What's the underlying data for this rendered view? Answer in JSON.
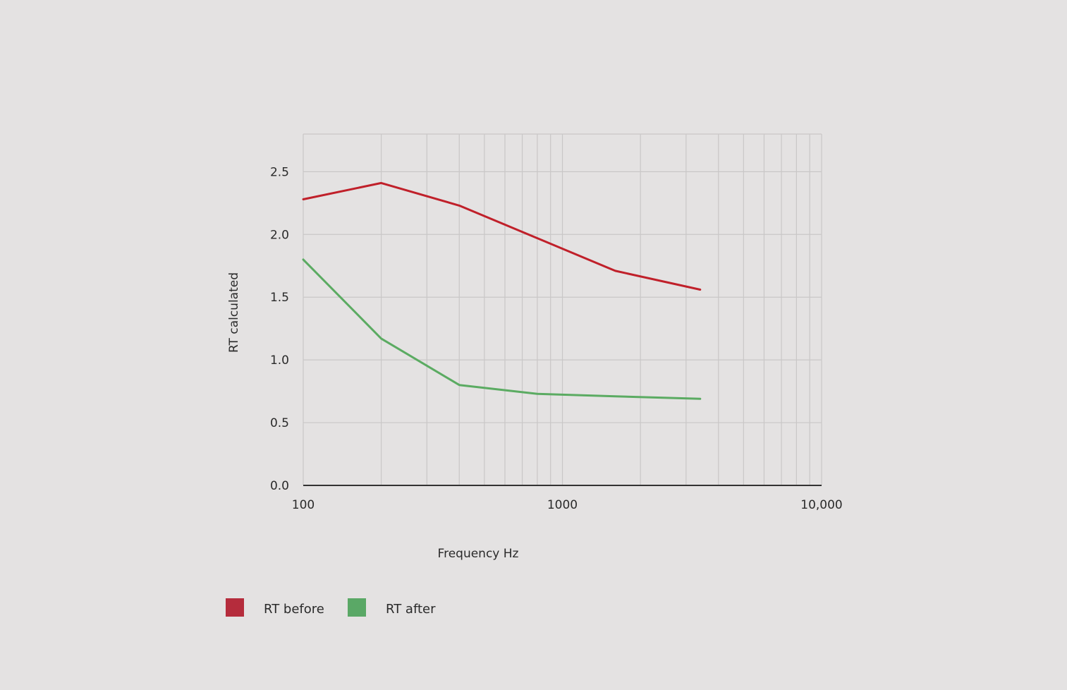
{
  "chart_data": {
    "type": "line",
    "title": "",
    "xlabel": "Frequency Hz",
    "ylabel": "RT calculated",
    "x_scale": "log",
    "xlim": [
      100,
      10000
    ],
    "ylim": [
      0,
      2.8
    ],
    "grid": true,
    "legend_position": "bottom-left",
    "x_tick_labels": [
      "100",
      "1000",
      "10,000"
    ],
    "x_tick_values": [
      100,
      1000,
      10000
    ],
    "y_tick_labels": [
      "0.0",
      "0.5",
      "1.0",
      "1.5",
      "2.0",
      "2.5"
    ],
    "y_tick_values": [
      0,
      0.5,
      1.0,
      1.5,
      2.0,
      2.5
    ],
    "x": [
      100,
      200,
      400,
      800,
      1600,
      3400
    ],
    "series": [
      {
        "name": "RT before",
        "color": "#c0202a",
        "values": [
          2.28,
          2.41,
          2.23,
          1.97,
          1.71,
          1.56
        ]
      },
      {
        "name": "RT after",
        "color": "#5bab62",
        "values": [
          1.8,
          1.17,
          0.8,
          0.73,
          0.71,
          0.69
        ]
      }
    ],
    "legend": [
      {
        "label": "RT before",
        "color": "#b52c3c"
      },
      {
        "label": "RT after",
        "color": "#5aa866"
      }
    ]
  }
}
